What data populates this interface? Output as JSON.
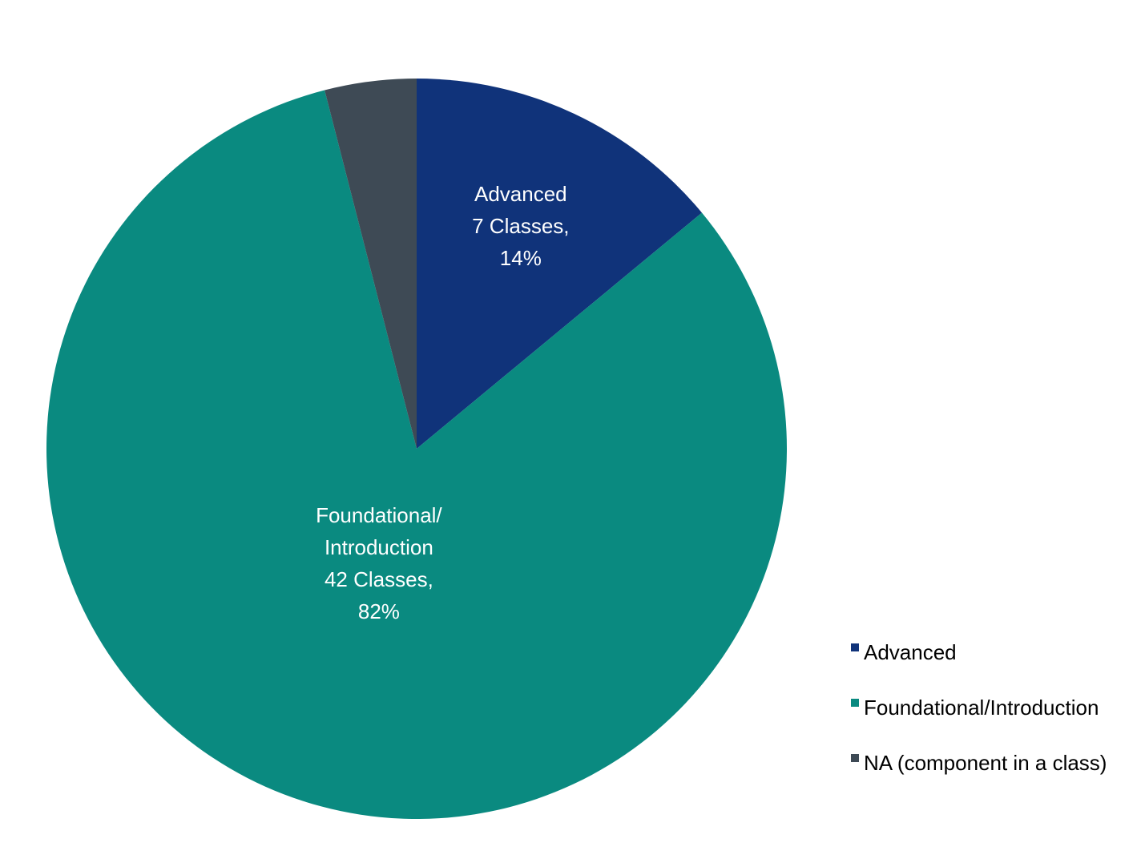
{
  "chart_data": {
    "type": "pie",
    "categories": [
      "Advanced",
      "Foundational/Introduction",
      "NA (component in a class)"
    ],
    "values": [
      14,
      82,
      4
    ],
    "value_labels": [
      "14%",
      "82%",
      null
    ],
    "slice_labels": [
      [
        "Advanced",
        "7 Classes,"
      ],
      [
        "Foundational/",
        "Introduction",
        "42 Classes,"
      ],
      null
    ],
    "colors": [
      "#10337a",
      "#0a8a80",
      "#3e4a55"
    ],
    "legend": "right"
  }
}
